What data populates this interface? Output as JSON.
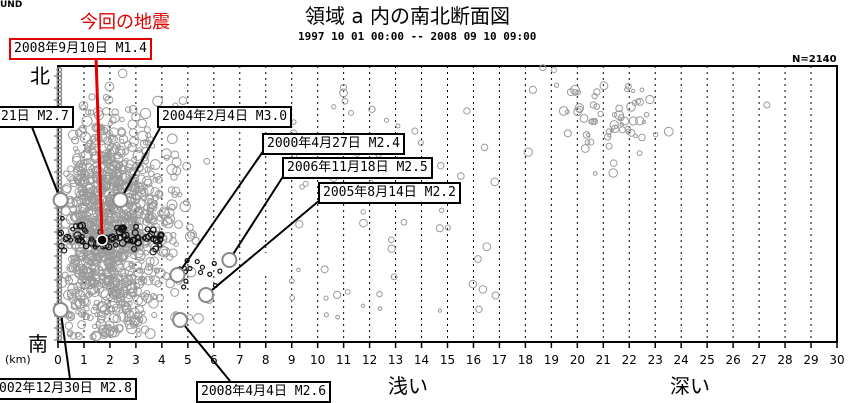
{
  "corner_label": "UND",
  "highlight_label": "今回の地震",
  "n_label": "N=2140",
  "directions": {
    "north": "北",
    "south": "南",
    "shallow": "浅い",
    "deep": "深い"
  },
  "axis_unit": "(km)",
  "annotations": [
    {
      "id": "a0",
      "text": "2008年9月10日  M1.4",
      "red": true
    },
    {
      "id": "a1",
      "text": "21日  M2.7"
    },
    {
      "id": "a2",
      "text": "2004年2月4日  M3.0"
    },
    {
      "id": "a3",
      "text": "2000年4月27日  M2.4"
    },
    {
      "id": "a4",
      "text": "2006年11月18日  M2.5"
    },
    {
      "id": "a5",
      "text": "2005年8月14日  M2.2"
    },
    {
      "id": "a6",
      "text": "002年12月30日  M2.8"
    },
    {
      "id": "a7",
      "text": "2008年4月4日  M2.6"
    }
  ],
  "chart_data": {
    "type": "scatter",
    "title": "領域 a 内の南北断面図",
    "subtitle": "1997 10 01 00:00 -- 2008 09 10 09:00",
    "xlabel": "(km)",
    "xlim": [
      0,
      30
    ],
    "x_ticks": [
      "0",
      "1",
      "2",
      "3",
      "4",
      "5",
      "6",
      "7",
      "8",
      "9",
      "10",
      "11",
      "12",
      "13",
      "14",
      "15",
      "16",
      "17",
      "18",
      "19",
      "20",
      "21",
      "22",
      "23",
      "24",
      "25",
      "26",
      "27",
      "28",
      "29",
      "30"
    ],
    "grid": true,
    "count_label": "N=2140",
    "highlighted_event": {
      "label": "2008年9月10日  M1.4",
      "depth_km": 1.7
    },
    "labeled_events": [
      {
        "label": "21日  M2.7",
        "depth_km": 0.1
      },
      {
        "label": "2004年2月4日  M3.0",
        "depth_km": 2.4
      },
      {
        "label": "2000年4月27日  M2.4",
        "depth_km": 4.6
      },
      {
        "label": "2006年11月18日  M2.5",
        "depth_km": 6.6
      },
      {
        "label": "2005年8月14日  M2.2",
        "depth_km": 5.7
      },
      {
        "label": "002年12月30日  M2.8",
        "depth_km": 0.1
      },
      {
        "label": "2008年4月4日  M2.6",
        "depth_km": 4.7
      }
    ]
  }
}
